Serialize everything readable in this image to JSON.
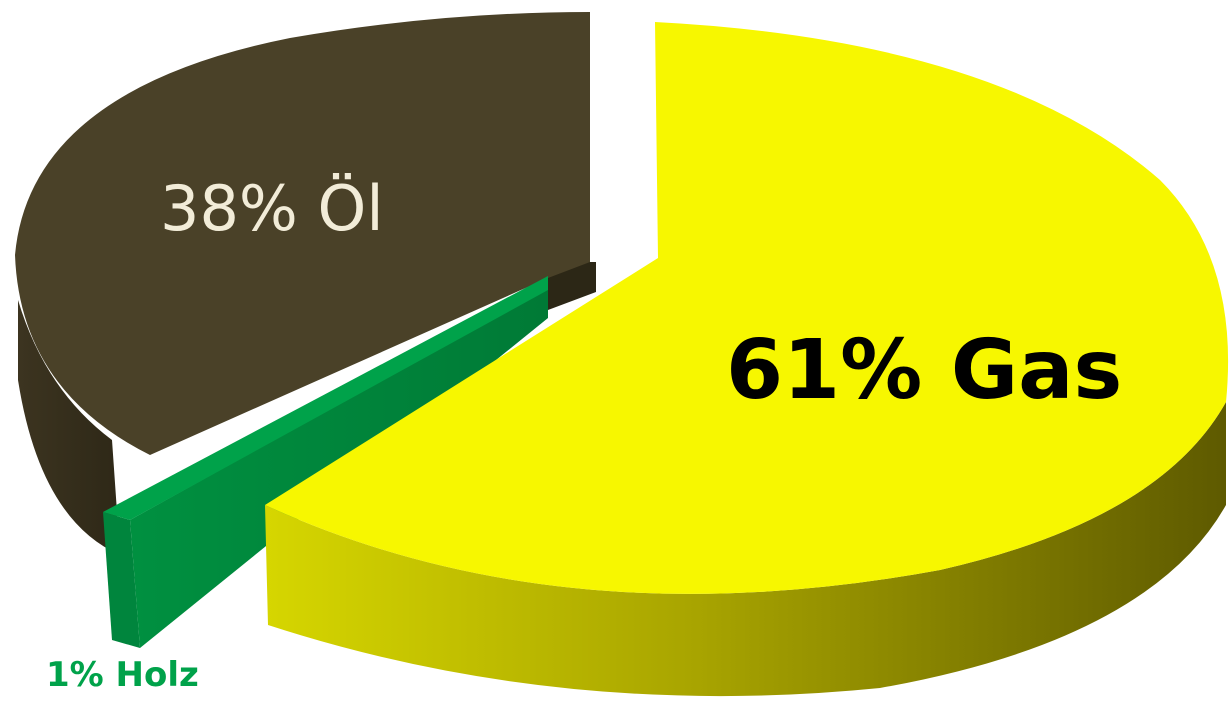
{
  "chart_data": {
    "type": "pie",
    "style": "3d-exploded",
    "slices": [
      {
        "label": "1% Holz",
        "category": "Holz",
        "value": 1,
        "color": "#00a24a"
      },
      {
        "label": "61% Gas",
        "category": "Gas",
        "value": 61,
        "color": "#f7f700"
      },
      {
        "label": "38% Öl",
        "category": "Öl",
        "value": 38,
        "color": "#4a4128"
      }
    ],
    "value_unit": "%",
    "legend": "none"
  }
}
